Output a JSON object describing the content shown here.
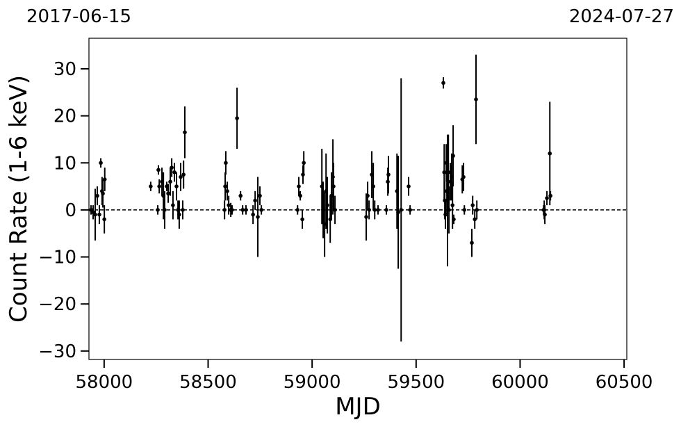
{
  "chart_data": {
    "type": "errorbar",
    "top_labels": [
      "2017-06-15",
      "2024-07-27"
    ],
    "xlabel": "MJD",
    "ylabel": "Count Rate (1-6 keV)",
    "xlim": [
      57927,
      60513
    ],
    "ylim": [
      -31.8,
      36.5
    ],
    "xticks": [
      58000,
      58500,
      59000,
      59500,
      60000,
      60500
    ],
    "yticks": [
      {
        "value": -30,
        "label": "−30"
      },
      {
        "value": -20,
        "label": "−20"
      },
      {
        "value": -10,
        "label": "−10"
      },
      0,
      10,
      20,
      30
    ],
    "hline": 0,
    "color": "#000000",
    "x": [
      57937,
      57947,
      57957,
      57967,
      57977,
      57984,
      57990,
      57994,
      58001,
      58003,
      58224,
      58258,
      58261,
      58265,
      58278,
      58285,
      58291,
      58301,
      58308,
      58318,
      58325,
      58331,
      58338,
      58348,
      58355,
      58361,
      58368,
      58378,
      58382,
      58388,
      58579,
      58582,
      58585,
      58592,
      58599,
      58609,
      58615,
      58639,
      58656,
      58666,
      58682,
      58716,
      58726,
      58739,
      58749,
      58756,
      58930,
      58936,
      58943,
      58953,
      58956,
      58960,
      59047,
      59053,
      59060,
      59067,
      59073,
      59087,
      59093,
      59100,
      59103,
      59110,
      59260,
      59267,
      59274,
      59287,
      59294,
      59301,
      59317,
      59357,
      59364,
      59367,
      59408,
      59414,
      59428,
      59464,
      59471,
      59631,
      59635,
      59638,
      59641,
      59645,
      59648,
      59651,
      59655,
      59658,
      59665,
      59671,
      59675,
      59678,
      59681,
      59722,
      59728,
      59732,
      59768,
      59772,
      59782,
      59788,
      59792,
      60113,
      60116,
      60119,
      60129,
      60143,
      60146
    ],
    "values": [
      0,
      -0.5,
      -1,
      3,
      -1,
      10,
      4,
      3.5,
      -2,
      6.5,
      5,
      0,
      8.5,
      5,
      6,
      3,
      0,
      5,
      3.5,
      6,
      9,
      1,
      8,
      5,
      0,
      -1,
      7,
      0,
      7.5,
      16.5,
      0,
      5,
      10,
      4,
      1,
      0,
      0,
      19.5,
      3,
      0,
      0,
      -1,
      2,
      -1.5,
      3,
      0,
      0,
      5,
      3,
      -2,
      7.5,
      10,
      5,
      0,
      -3,
      4,
      1,
      -2,
      3,
      7,
      5,
      0,
      -1.5,
      3,
      0,
      7.5,
      5,
      0,
      0,
      0,
      6,
      7.5,
      4,
      -0.5,
      0,
      5,
      0,
      27,
      8,
      2,
      -1,
      10,
      4,
      2,
      8,
      0,
      6,
      7,
      1,
      11.5,
      -2,
      6.5,
      7,
      0,
      -7,
      1,
      -2,
      23.5,
      0,
      0,
      0,
      -1,
      2.5,
      12,
      3
    ],
    "errors": [
      1,
      1.5,
      5.5,
      2,
      2,
      1,
      3,
      3,
      3,
      2.5,
      1,
      1,
      1,
      1.5,
      3,
      5,
      4,
      1,
      2,
      3,
      2,
      3,
      2,
      3,
      2,
      3,
      3,
      2,
      3,
      5.5,
      2,
      3,
      2.5,
      2,
      2,
      1.5,
      1,
      6.5,
      1,
      1,
      1,
      2,
      2,
      8.5,
      2,
      1,
      1,
      2,
      1,
      2,
      2,
      2.5,
      8,
      6,
      7,
      8,
      6,
      5,
      5,
      8,
      5,
      3,
      5,
      3,
      2,
      5,
      5,
      2,
      1,
      1,
      3,
      4,
      8,
      12,
      28,
      2,
      1,
      1.2,
      6,
      4,
      3,
      4,
      5,
      14,
      8,
      5,
      4,
      5,
      5,
      6.5,
      1,
      3,
      3,
      1,
      3,
      2,
      2,
      9.5,
      2,
      1,
      2,
      2,
      1.5,
      11,
      1
    ]
  }
}
